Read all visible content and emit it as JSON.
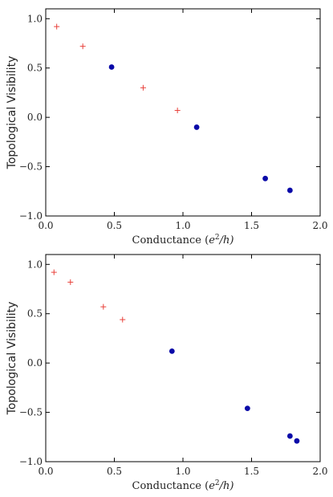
{
  "colors": {
    "cross_series": "#e8403a",
    "dot_series": "#0a0aa8",
    "axes": "#000000"
  },
  "chart_data": [
    {
      "type": "scatter",
      "xlabel_prefix": "Conductance (",
      "xlabel_var": "e",
      "xlabel_exp": "2",
      "xlabel_suffix": "/h)",
      "ylabel": "Topological Visibility",
      "xlim": [
        0.0,
        2.0
      ],
      "ylim": [
        -1.0,
        1.1
      ],
      "xticks": [
        {
          "value": 0.0,
          "label": "0.0"
        },
        {
          "value": 0.5,
          "label": "0.5"
        },
        {
          "value": 1.0,
          "label": "1.0"
        },
        {
          "value": 1.5,
          "label": "1.5"
        },
        {
          "value": 2.0,
          "label": "2.0"
        }
      ],
      "yticks": [
        {
          "value": -1.0,
          "label": "−1.0"
        },
        {
          "value": -0.5,
          "label": "−0.5"
        },
        {
          "value": 0.0,
          "label": "0.0"
        },
        {
          "value": 0.5,
          "label": "0.5"
        },
        {
          "value": 1.0,
          "label": "1.0"
        }
      ],
      "grid": false,
      "series": [
        {
          "marker": "plus",
          "color": "#e8403a",
          "points": [
            [
              0.08,
              0.92
            ],
            [
              0.27,
              0.72
            ],
            [
              0.71,
              0.3
            ],
            [
              0.96,
              0.07
            ]
          ]
        },
        {
          "marker": "dot",
          "color": "#0a0aa8",
          "points": [
            [
              0.48,
              0.51
            ],
            [
              1.1,
              -0.1
            ],
            [
              1.6,
              -0.62
            ],
            [
              1.78,
              -0.74
            ]
          ]
        }
      ]
    },
    {
      "type": "scatter",
      "xlabel_prefix": "Conductance (",
      "xlabel_var": "e",
      "xlabel_exp": "2",
      "xlabel_suffix": "/h)",
      "ylabel": "Topological Visibility",
      "xlim": [
        0.0,
        2.0
      ],
      "ylim": [
        -1.0,
        1.1
      ],
      "xticks": [
        {
          "value": 0.0,
          "label": "0.0"
        },
        {
          "value": 0.5,
          "label": "0.5"
        },
        {
          "value": 1.0,
          "label": "1.0"
        },
        {
          "value": 1.5,
          "label": "1.5"
        },
        {
          "value": 2.0,
          "label": "2.0"
        }
      ],
      "yticks": [
        {
          "value": -1.0,
          "label": "−1.0"
        },
        {
          "value": -0.5,
          "label": "−0.5"
        },
        {
          "value": 0.0,
          "label": "0.0"
        },
        {
          "value": 0.5,
          "label": "0.5"
        },
        {
          "value": 1.0,
          "label": "1.0"
        }
      ],
      "grid": false,
      "series": [
        {
          "marker": "plus",
          "color": "#e8403a",
          "points": [
            [
              0.06,
              0.92
            ],
            [
              0.18,
              0.82
            ],
            [
              0.42,
              0.57
            ],
            [
              0.56,
              0.44
            ]
          ]
        },
        {
          "marker": "dot",
          "color": "#0a0aa8",
          "points": [
            [
              0.92,
              0.12
            ],
            [
              1.47,
              -0.46
            ],
            [
              1.78,
              -0.74
            ],
            [
              1.83,
              -0.79
            ]
          ]
        }
      ]
    }
  ]
}
